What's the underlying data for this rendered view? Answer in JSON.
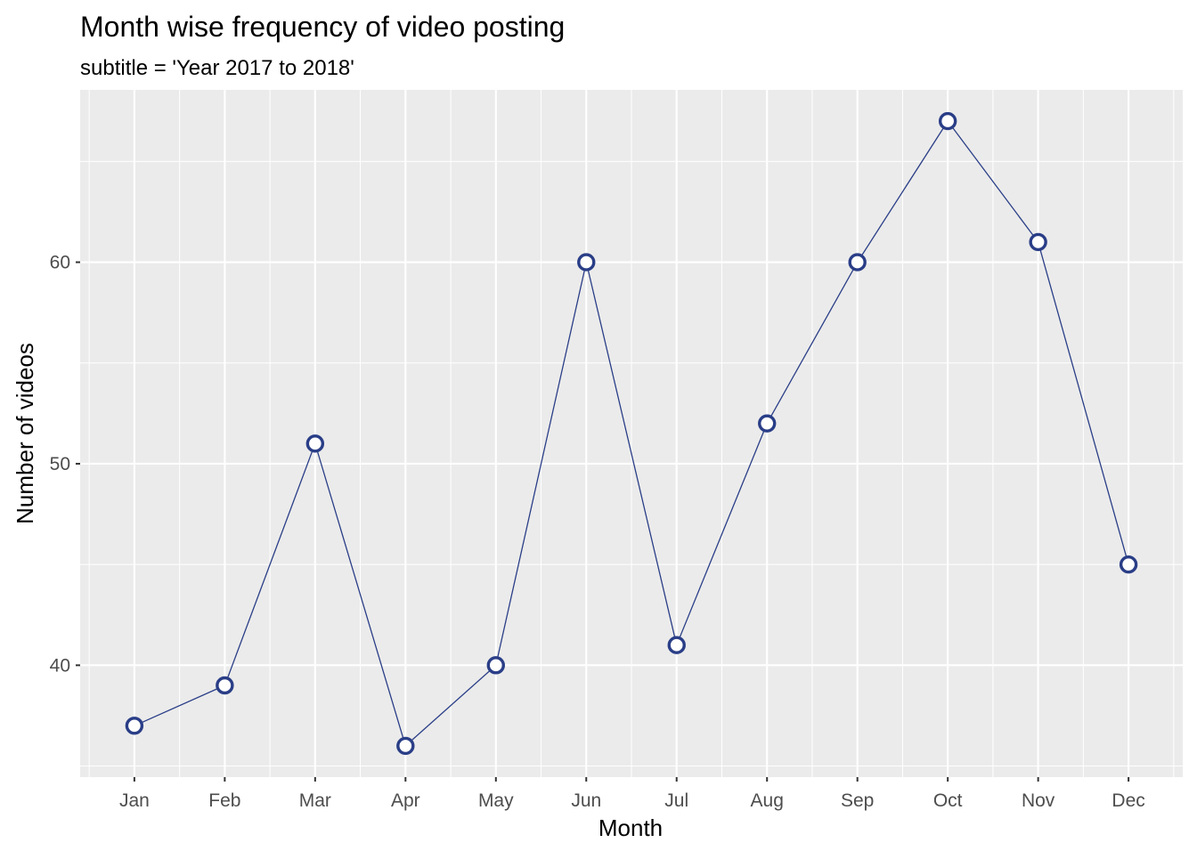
{
  "chart_data": {
    "type": "line",
    "title": "Month wise frequency of video posting",
    "subtitle": "subtitle = 'Year 2017 to 2018'",
    "xlabel": "Month",
    "ylabel": "Number of videos",
    "categories": [
      "Jan",
      "Feb",
      "Mar",
      "Apr",
      "May",
      "Jun",
      "Jul",
      "Aug",
      "Sep",
      "Oct",
      "Nov",
      "Dec"
    ],
    "series": [
      {
        "values": [
          37,
          39,
          51,
          36,
          40,
          60,
          41,
          52,
          60,
          67,
          61,
          45
        ]
      }
    ],
    "ylim": [
      34.45,
      68.55
    ],
    "yticks": [
      40,
      50,
      60
    ],
    "ytick_labels": [
      "40",
      "50",
      "60"
    ],
    "grid": true,
    "legend": "none",
    "colors": {
      "line": "#2a3e87",
      "marker_fill": "#ffffff",
      "marker_stroke": "#2a3e87",
      "panel_background": "#ebebeb",
      "grid": "#ffffff"
    }
  }
}
